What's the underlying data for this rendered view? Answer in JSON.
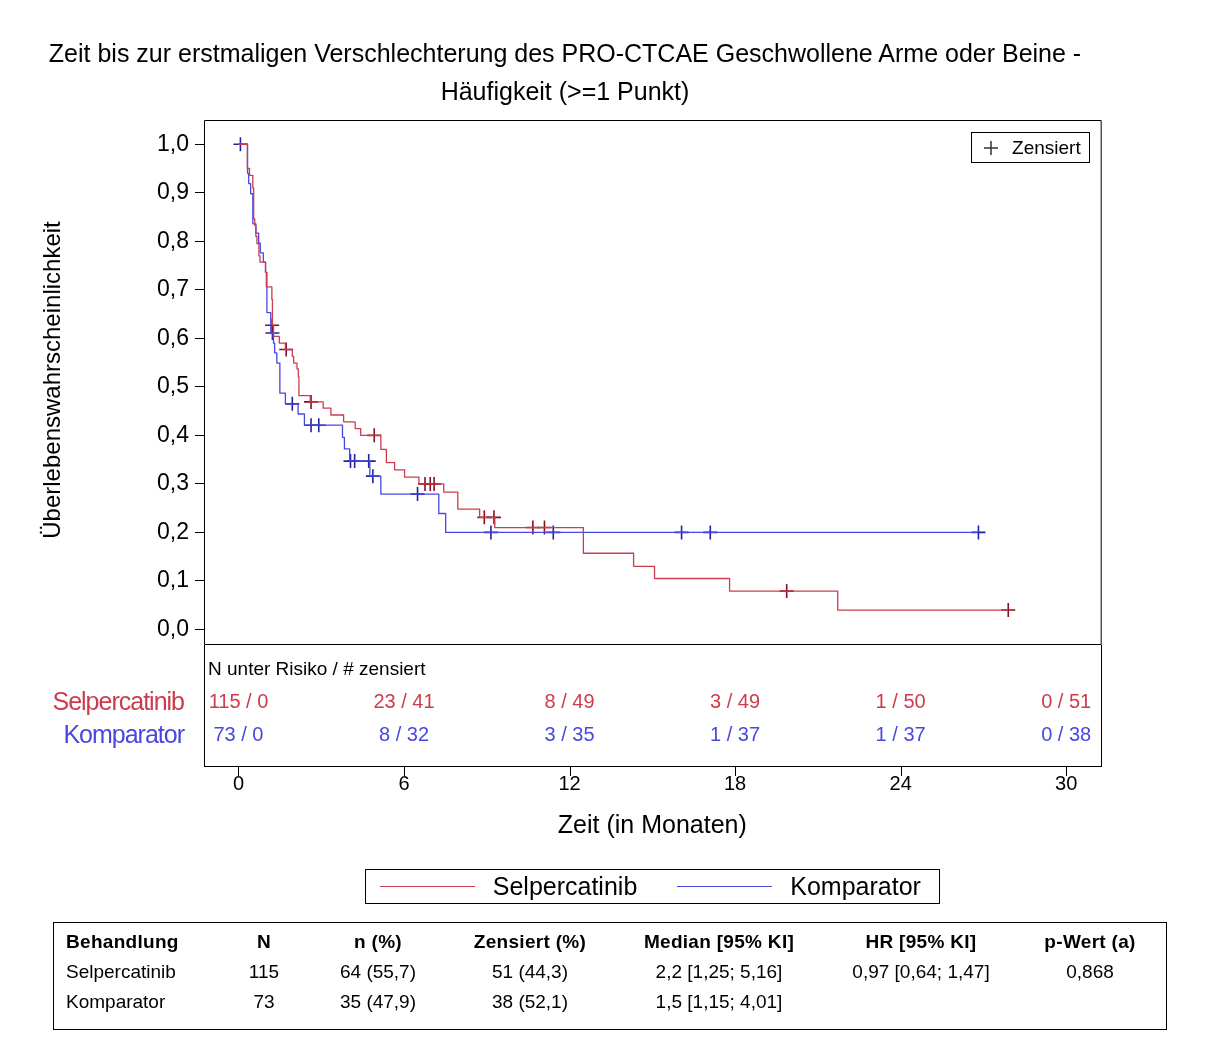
{
  "chart_data": {
    "type": "step",
    "title": "Zeit bis zur erstmaligen Verschlechterung des PRO-CTCAE Geschwollene Arme oder Beine - Häufigkeit (>=1 Punkt)",
    "xlabel": "Zeit (in Monaten)",
    "ylabel": "Überlebenswahrscheinlichkeit",
    "xlim": [
      -1.25,
      31.25
    ],
    "xticks": [
      0,
      6,
      12,
      18,
      24,
      30
    ],
    "ylim": [
      -0.03,
      1.05
    ],
    "yticks": [
      {
        "value": 0,
        "label": "0,0"
      },
      {
        "value": 0.1,
        "label": "0,1"
      },
      {
        "value": 0.2,
        "label": "0,2"
      },
      {
        "value": 0.3,
        "label": "0,3"
      },
      {
        "value": 0.4,
        "label": "0,4"
      },
      {
        "value": 0.5,
        "label": "0,5"
      },
      {
        "value": 0.6,
        "label": "0,6"
      },
      {
        "value": 0.7,
        "label": "0,7"
      },
      {
        "value": 0.8,
        "label": "0,8"
      },
      {
        "value": 0.9,
        "label": "0,9"
      },
      {
        "value": 1,
        "label": "1,0"
      }
    ],
    "legend": "bottom",
    "series": [
      {
        "name": "Selpercatinib",
        "color": "#cd3c4c",
        "x": [
          0,
          0.32,
          0.4,
          0.52,
          0.55,
          0.59,
          0.63,
          0.67,
          0.74,
          0.78,
          0.98,
          1.01,
          1.21,
          1.23,
          1.27,
          1.48,
          1.7,
          1.95,
          2.0,
          2.12,
          2.17,
          2.19,
          2.6,
          3.07,
          3.35,
          3.81,
          4.23,
          4.43,
          5.16,
          5.36,
          5.66,
          6.02,
          6.54,
          7.44,
          7.95,
          8.74,
          9.29,
          12.5,
          14.32,
          15.08,
          17.8,
          21.72,
          27.9
        ],
        "values": [
          1,
          0.95,
          0.936,
          0.91,
          0.846,
          0.833,
          0.81,
          0.795,
          0.77,
          0.757,
          0.736,
          0.706,
          0.68,
          0.627,
          0.604,
          0.59,
          0.577,
          0.563,
          0.549,
          0.537,
          0.521,
          0.482,
          0.469,
          0.456,
          0.442,
          0.428,
          0.414,
          0.4,
          0.371,
          0.344,
          0.329,
          0.314,
          0.3,
          0.283,
          0.248,
          0.231,
          0.21,
          0.157,
          0.13,
          0.105,
          0.079,
          0.04,
          0.04
        ]
      },
      {
        "name": "Komparator",
        "color": "#4848e0",
        "x": [
          0,
          0.33,
          0.37,
          0.44,
          0.52,
          0.63,
          0.73,
          0.79,
          0.9,
          0.98,
          1.03,
          1.17,
          1.27,
          1.31,
          1.39,
          1.5,
          1.7,
          2.16,
          2.39,
          3.77,
          3.84,
          4.03,
          4.76,
          5.16,
          7.26,
          7.51,
          26.82
        ],
        "values": [
          1,
          0.94,
          0.919,
          0.898,
          0.836,
          0.817,
          0.796,
          0.776,
          0.757,
          0.736,
          0.653,
          0.611,
          0.59,
          0.57,
          0.549,
          0.487,
          0.465,
          0.444,
          0.421,
          0.396,
          0.372,
          0.347,
          0.316,
          0.279,
          0.239,
          0.2,
          0.2
        ]
      },
      {
        "type": "scatter",
        "marker": "cross",
        "color": "#8b0f23",
        "x": [
          1.22,
          1.73,
          2.63,
          4.92,
          6.76,
          6.95,
          7.09,
          8.91,
          9.26,
          10.67,
          11.09,
          19.87,
          27.9
        ],
        "values": [
          0.627,
          0.577,
          0.469,
          0.4,
          0.3,
          0.3,
          0.3,
          0.231,
          0.231,
          0.21,
          0.21,
          0.079,
          0.04
        ]
      },
      {
        "type": "scatter",
        "marker": "cross",
        "color": "#2222a8",
        "x": [
          0.07,
          1.23,
          1.95,
          2.63,
          2.91,
          4.06,
          4.21,
          4.72,
          4.87,
          6.49,
          9.15,
          11.41,
          16.06,
          17.1,
          26.82
        ],
        "values": [
          1,
          0.611,
          0.465,
          0.421,
          0.421,
          0.347,
          0.347,
          0.347,
          0.316,
          0.279,
          0.2,
          0.2,
          0.2,
          0.2,
          0.2
        ]
      }
    ],
    "annotations": [
      "Zensiert",
      "N unter Risiko / # zensiert",
      "115 / 0",
      "23 / 41",
      "8 / 49",
      "3 / 49",
      "1 / 50",
      "0 / 51",
      "73 / 0",
      "8 / 32",
      "3 / 35",
      "1 / 37",
      "1 / 37",
      "0 / 38",
      "Behandlung",
      "N",
      "n (%)",
      "Zensiert (%)",
      "Median [95% KI]",
      "HR [95% KI]",
      "p-Wert (a)",
      "Selpercatinib",
      "115",
      "64 (55,7)",
      "51 (44,3)",
      "2,2 [1,25; 5,16]",
      "0,97 [0,64; 1,47]",
      "0,868",
      "Komparator",
      "73",
      "35 (47,9)",
      "38 (52,1)",
      "1,5 [1,15; 4,01]"
    ]
  }
}
